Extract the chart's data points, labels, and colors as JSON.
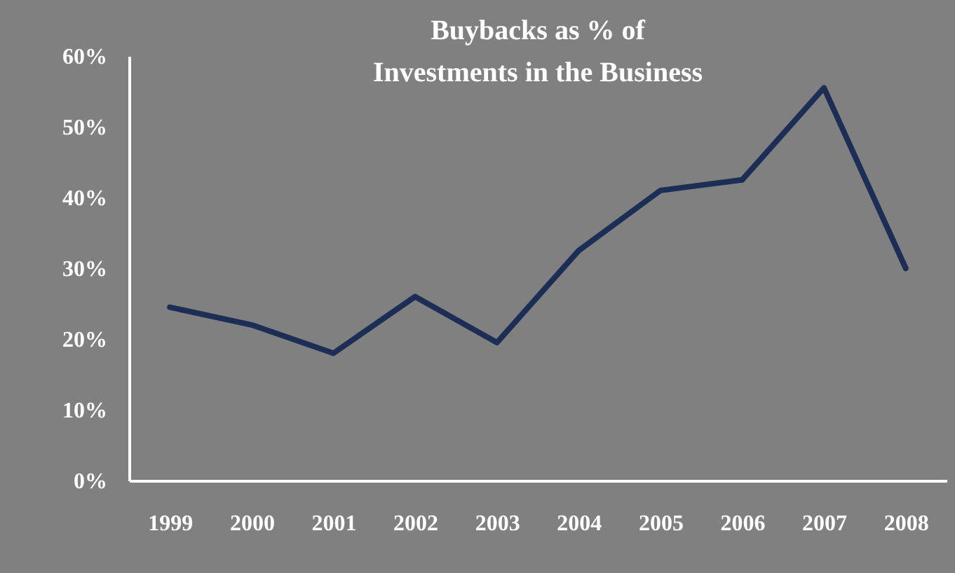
{
  "chart_data": {
    "type": "line",
    "title": "Buybacks as % of Investments in the Business",
    "categories": [
      "1999",
      "2000",
      "2001",
      "2002",
      "2003",
      "2004",
      "2005",
      "2006",
      "2007",
      "2008"
    ],
    "series": [
      {
        "color": "#1c2e55",
        "values": [
          24.5,
          22,
          18,
          26,
          19.5,
          32.5,
          41,
          42.5,
          55.5,
          30
        ]
      }
    ],
    "ylim": [
      0,
      60
    ],
    "yticks": [
      {
        "value": 0,
        "label": "0%"
      },
      {
        "value": 10,
        "label": "10%"
      },
      {
        "value": 20,
        "label": "20%"
      },
      {
        "value": 30,
        "label": "30%"
      },
      {
        "value": 40,
        "label": "40%"
      },
      {
        "value": 50,
        "label": "50%"
      },
      {
        "value": 60,
        "label": "60%"
      }
    ],
    "grid": false,
    "legend": false,
    "marker": "none",
    "line_style": "solid"
  }
}
